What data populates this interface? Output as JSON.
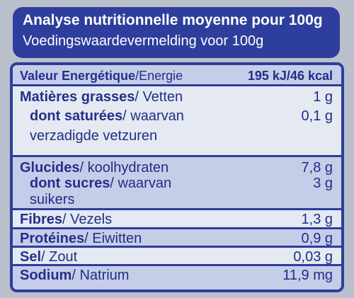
{
  "header": {
    "line1": "Analyse nutritionnelle moyenne pour 100g",
    "line2": "Voedingswaardevermelding voor 100g"
  },
  "rows": [
    {
      "fr": "Valeur Energétique",
      "nl": "/Energie",
      "value": "195 kJ/46 kcal"
    },
    {
      "fr": "Matières grasses",
      "nl": "/ Vetten",
      "value": "1 g"
    },
    {
      "fr": "dont saturées",
      "nl": "/ waarvan",
      "nl2": "verzadigde vetzuren",
      "value": "0,1 g"
    },
    {
      "fr": "Glucides",
      "nl": "/ koolhydraten",
      "value": "7,8 g"
    },
    {
      "fr": "dont sucres",
      "nl": "/ waarvan",
      "nl2": "suikers",
      "value": "3 g"
    },
    {
      "fr": "Fibres",
      "nl": "/ Vezels",
      "value": "1,3 g"
    },
    {
      "fr": "Protéines",
      "nl": "/ Eiwitten",
      "value": "0,9 g"
    },
    {
      "fr": "Sel",
      "nl": "/ Zout",
      "value": "0,03 g"
    },
    {
      "fr": "Sodium",
      "nl": "/ Natrium",
      "value": "11,9 mg"
    }
  ],
  "colors": {
    "navy": "#2d3e9c",
    "text": "#1f2f86",
    "panel": "#e5e9f2",
    "shade": "#c6cde8"
  }
}
